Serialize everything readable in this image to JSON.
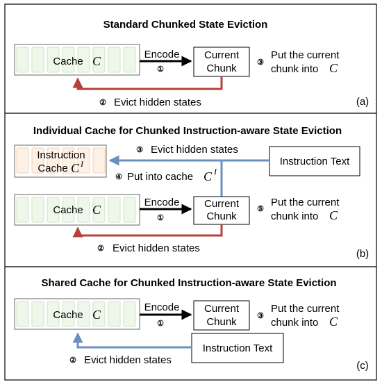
{
  "panels": [
    {
      "title": "Standard Chunked State Eviction",
      "tag": "(a)",
      "cache_label": "Cache",
      "cache_var": "C",
      "encode_label": "Encode",
      "encode_num": "①",
      "chunk_line1": "Current",
      "chunk_line2": "Chunk",
      "put_num": "③",
      "put_line1": "Put the current",
      "put_line2": "chunk into",
      "put_var": "C",
      "evict_num": "②",
      "evict_label": "Evict hidden states"
    },
    {
      "title": "Individual Cache for Chunked Instruction-aware State Eviction",
      "tag": "(b)",
      "instr_cache_line1": "Instruction",
      "instr_cache_line2": "Cache",
      "instr_cache_var": "C",
      "instr_cache_sup": "I",
      "instr_text": "Instruction Text",
      "evict_instr_num": "③",
      "evict_instr_label": "Evict hidden states",
      "put_cache_num": "④",
      "put_cache_label": "Put into cache",
      "put_cache_var": "C",
      "put_cache_sup": "I",
      "cache_label": "Cache",
      "cache_var": "C",
      "encode_label": "Encode",
      "encode_num": "①",
      "chunk_line1": "Current",
      "chunk_line2": "Chunk",
      "put_num": "⑤",
      "put_line1": "Put the current",
      "put_line2": "chunk into",
      "put_var": "C",
      "evict_num": "②",
      "evict_label": "Evict hidden states"
    },
    {
      "title": "Shared Cache for Chunked Instruction-aware State Eviction",
      "tag": "(c)",
      "cache_label": "Cache",
      "cache_var": "C",
      "encode_label": "Encode",
      "encode_num": "①",
      "chunk_line1": "Current",
      "chunk_line2": "Chunk",
      "put_num": "③",
      "put_line1": "Put the current",
      "put_line2": "chunk into",
      "put_var": "C",
      "instr_text": "Instruction Text",
      "evict_num": "②",
      "evict_label": "Evict hidden states"
    }
  ],
  "colors": {
    "red_arrow": "#b5403c",
    "blue_arrow": "#6b8fbf",
    "cache_cell_fill": "#eef7ea",
    "cache_cell_stroke": "#cfe3c8",
    "instr_cell_fill": "#fdf1e6",
    "instr_cell_stroke": "#f2d2b4",
    "border": "#000000"
  }
}
